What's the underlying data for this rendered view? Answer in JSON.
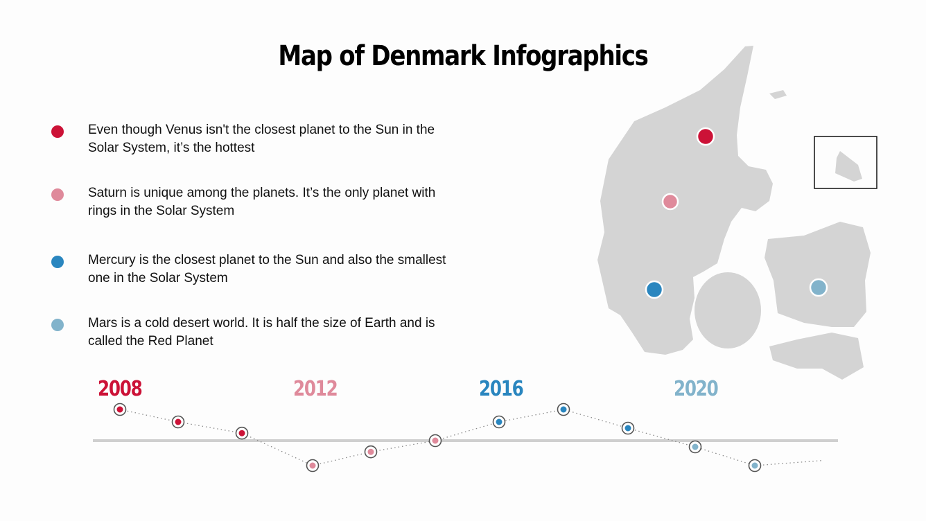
{
  "title": "Map of Denmark Infographics",
  "colors": {
    "red": "#cc1237",
    "pink": "#df8a9b",
    "blue": "#2a86bf",
    "lightblue": "#82b3cb",
    "map": "#d4d4d4"
  },
  "items": [
    {
      "text": "Even though Venus isn't the closest planet to the Sun in the Solar System, it’s the hottest",
      "color": "#cc1237"
    },
    {
      "text": "Saturn is unique among the planets. It’s the only planet with rings in the Solar System",
      "color": "#df8a9b"
    },
    {
      "text": "Mercury is the closest planet to the Sun and also the smallest one in the Solar System",
      "color": "#2a86bf"
    },
    {
      "text": "Mars is a cold desert world. It is half the size of Earth and is called the Red Planet",
      "color": "#82b3cb"
    }
  ],
  "timeline": {
    "years": [
      {
        "label": "2008",
        "color": "#cc1237"
      },
      {
        "label": "2012",
        "color": "#df8a9b"
      },
      {
        "label": "2016",
        "color": "#2a86bf"
      },
      {
        "label": "2020",
        "color": "#82b3cb"
      }
    ],
    "points": [
      {
        "value": 2.5,
        "color": "#cc1237"
      },
      {
        "value": 1.5,
        "color": "#cc1237"
      },
      {
        "value": 0.6,
        "color": "#cc1237"
      },
      {
        "value": -2,
        "color": "#df8a9b"
      },
      {
        "value": -0.9,
        "color": "#df8a9b"
      },
      {
        "value": 0,
        "color": "#df8a9b"
      },
      {
        "value": 1.5,
        "color": "#2a86bf"
      },
      {
        "value": 2.5,
        "color": "#2a86bf"
      },
      {
        "value": 1,
        "color": "#2a86bf"
      },
      {
        "value": -0.5,
        "color": "#82b3cb"
      },
      {
        "value": -2,
        "color": "#82b3cb"
      }
    ],
    "tail_value": -1.6
  }
}
